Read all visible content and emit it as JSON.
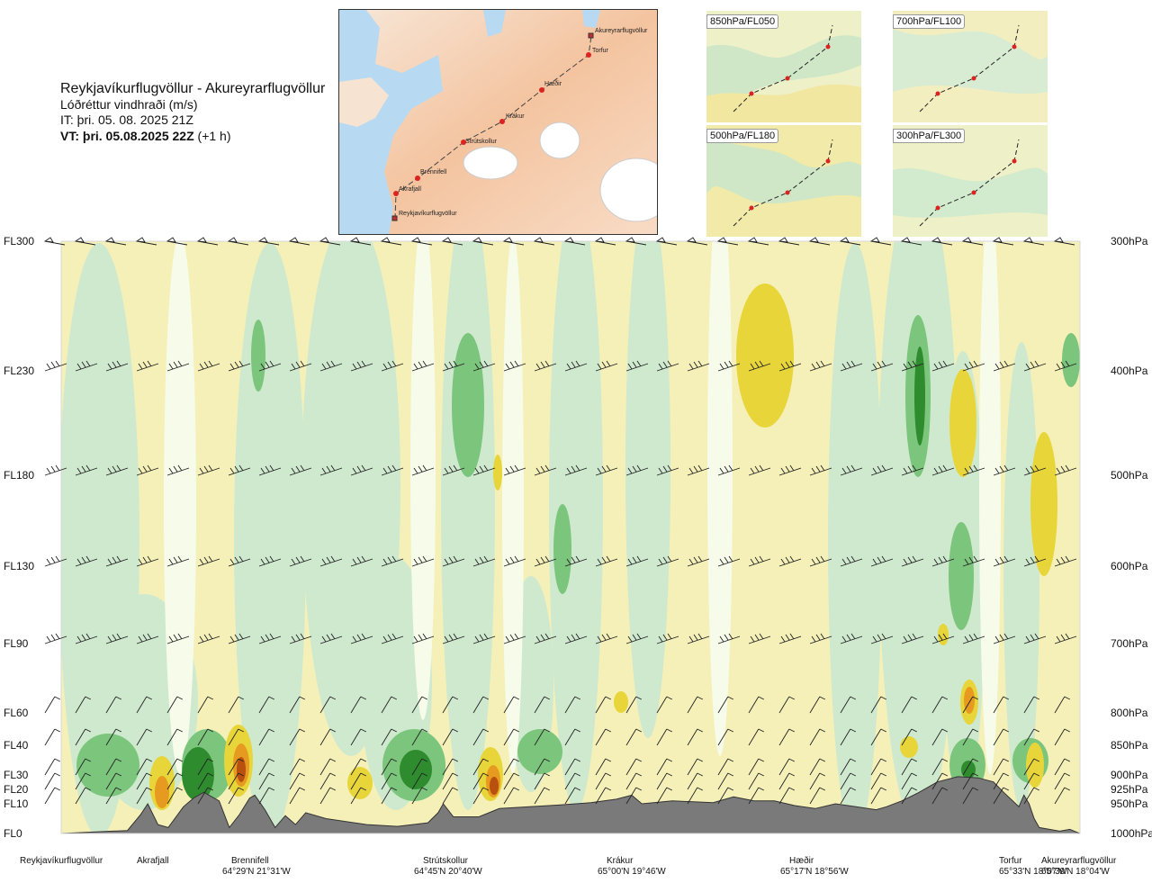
{
  "header": {
    "route": "Reykjavíkurflugvöllur - Akureyrarflugvöllur",
    "variable": "Lóðréttur vindhraði (m/s)",
    "issue_time": "IT: þri. 05. 08. 2025 21Z",
    "valid_label": "VT: þri. 05.08.2025 22Z",
    "valid_offset": "(+1 h)"
  },
  "route_map": {
    "waypoints": [
      "Akureyrarflugvöllur",
      "Torfur",
      "Hæðir",
      "Krákur",
      "Strútskollur",
      "Brennifell",
      "Akrafjall",
      "Reykjavíkurflugvöllur"
    ]
  },
  "mini_maps": [
    "850hPa/FL050",
    "700hPa/FL100",
    "500hPa/FL180",
    "300hPa/FL300"
  ],
  "colors": {
    "strong_up": "#2e8b2e",
    "up": "#7cc57c",
    "weak_up": "#cfe9cf",
    "calm": "#f6fbea",
    "weak_down": "#f4eca0",
    "down": "#e8d53a",
    "strong_down": "#e69a20",
    "extreme_down": "#b8500f",
    "terrain": "#7a7a7a"
  },
  "chart_data": {
    "type": "heatmap",
    "title": "Lóðréttur vindhraði (m/s)",
    "y_axis_left": {
      "labels": [
        "FL300",
        "FL230",
        "FL180",
        "FL130",
        "FL90",
        "FL60",
        "FL40",
        "FL30",
        "FL20",
        "FL10",
        "FL0"
      ],
      "values": [
        300,
        230,
        180,
        130,
        90,
        60,
        40,
        30,
        20,
        10,
        0
      ]
    },
    "y_axis_right": {
      "labels": [
        "300hPa",
        "400hPa",
        "500hPa",
        "600hPa",
        "700hPa",
        "800hPa",
        "850hPa",
        "900hPa",
        "925hPa",
        "950hPa",
        "1000hPa"
      ],
      "values": [
        300,
        400,
        500,
        600,
        700,
        800,
        850,
        900,
        925,
        950,
        1000
      ]
    },
    "wind_barb_levels_hpa": [
      300,
      400,
      500,
      600,
      700,
      800,
      850,
      900,
      925,
      950
    ],
    "waypoints": [
      {
        "name": "Reykjavíkurflugvöllur",
        "coord": "",
        "dist": 0.0
      },
      {
        "name": "Akrafjall",
        "coord": "",
        "dist": 0.09
      },
      {
        "name": "Brennifell",
        "coord": "64°29'N 21°31'W",
        "dist": 0.19
      },
      {
        "name": "Strútskollur",
        "coord": "64°45'N 20°40'W",
        "dist": 0.38
      },
      {
        "name": "Krákur",
        "coord": "65°00'N 19°46'W",
        "dist": 0.56
      },
      {
        "name": "Hæðir",
        "coord": "65°17'N 18°56'W",
        "dist": 0.74
      },
      {
        "name": "Torfur",
        "coord": "65°33'N 18°07'W",
        "dist": 0.95
      },
      {
        "name": "Akureyrarflugvöllur",
        "coord": "65°39'N 18°04'W",
        "dist": 1.0
      }
    ]
  }
}
